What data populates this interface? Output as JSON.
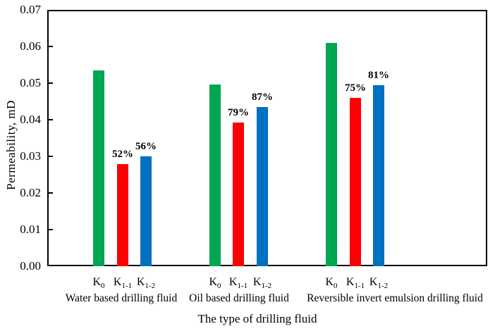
{
  "chart_data": {
    "type": "bar",
    "title": "",
    "xlabel": "The type of drilling fluid",
    "ylabel": "Permeability,  mD",
    "ylim": [
      0,
      0.07
    ],
    "ytick_step": 0.01,
    "yticks": [
      "0.00",
      "0.01",
      "0.02",
      "0.03",
      "0.04",
      "0.05",
      "0.06",
      "0.07"
    ],
    "grid": "off",
    "legend": "none",
    "colors": {
      "k0": "#00A651",
      "k1_1": "#FF0000",
      "k1_2": "#0070C0",
      "frame": "#000000",
      "text": "#000000"
    },
    "groups": [
      {
        "label": "Water based drilling fluid",
        "bars": [
          {
            "name": "K",
            "sub": "0",
            "value": 0.0535,
            "color": "#00A651",
            "annotation": ""
          },
          {
            "name": "K",
            "sub": "1-1",
            "value": 0.0278,
            "color": "#FF0000",
            "annotation": "52%"
          },
          {
            "name": "K",
            "sub": "1-2",
            "value": 0.03,
            "color": "#0070C0",
            "annotation": "56%"
          }
        ]
      },
      {
        "label": "Oil based drilling fluid",
        "bars": [
          {
            "name": "K",
            "sub": "0",
            "value": 0.0497,
            "color": "#00A651",
            "annotation": ""
          },
          {
            "name": "K",
            "sub": "1-1",
            "value": 0.0393,
            "color": "#FF0000",
            "annotation": "79%"
          },
          {
            "name": "K",
            "sub": "1-2",
            "value": 0.0434,
            "color": "#0070C0",
            "annotation": "87%"
          }
        ]
      },
      {
        "label": "Reversible invert emulsion drilling fluid",
        "bars": [
          {
            "name": "K",
            "sub": "0",
            "value": 0.061,
            "color": "#00A651",
            "annotation": ""
          },
          {
            "name": "K",
            "sub": "1-1",
            "value": 0.0459,
            "color": "#FF0000",
            "annotation": "75%"
          },
          {
            "name": "K",
            "sub": "1-2",
            "value": 0.0495,
            "color": "#0070C0",
            "annotation": "81%"
          }
        ]
      }
    ]
  }
}
